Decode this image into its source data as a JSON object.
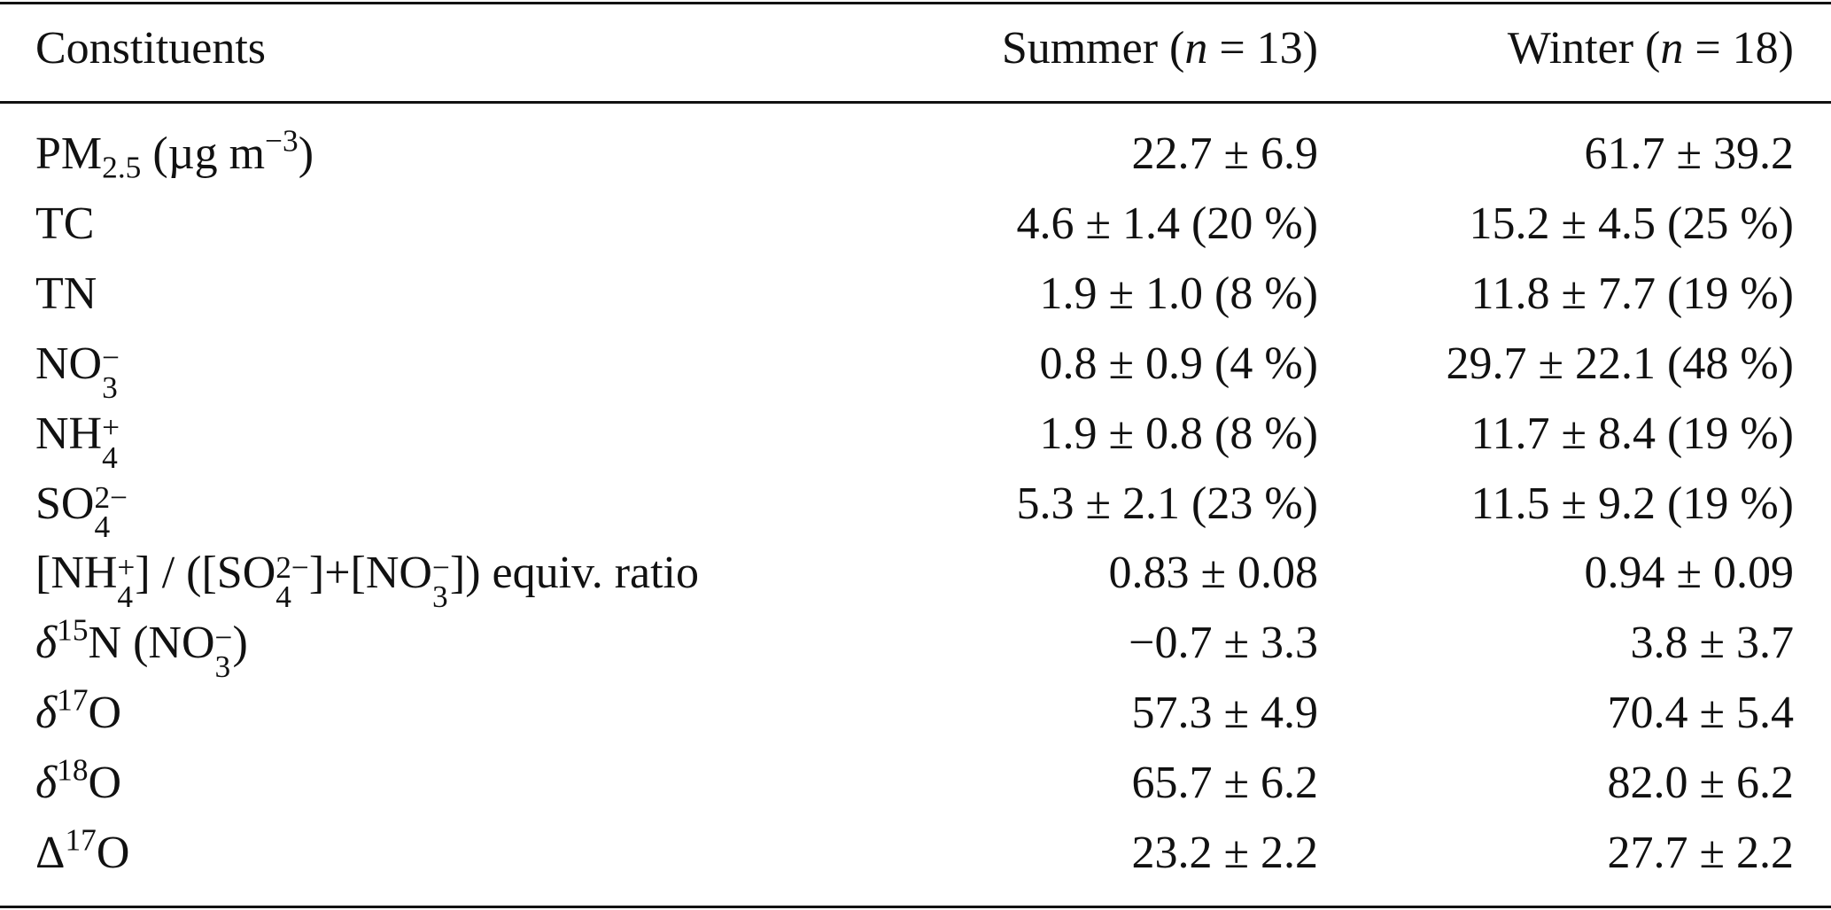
{
  "header": {
    "columns": [
      [
        {
          "text": "Constituents"
        }
      ],
      [
        {
          "text": "Summer ("
        },
        {
          "i": "n"
        },
        {
          "text": " = 13)"
        }
      ],
      [
        {
          "text": "Winter ("
        },
        {
          "i": "n"
        },
        {
          "text": " = 18)"
        }
      ]
    ]
  },
  "rows": [
    {
      "label": [
        {
          "text": "PM"
        },
        {
          "sub": "2.5"
        },
        {
          "text": " (µg m"
        },
        {
          "sup": "−3"
        },
        {
          "text": ")"
        }
      ],
      "summer": "22.7 ± 6.9",
      "winter": "61.7 ± 39.2"
    },
    {
      "label": [
        {
          "text": "TC"
        }
      ],
      "summer": "4.6 ± 1.4 (20 %)",
      "winter": "15.2 ± 4.5 (25 %)"
    },
    {
      "label": [
        {
          "text": "TN"
        }
      ],
      "summer": "1.9 ± 1.0 (8 %)",
      "winter": "11.8 ± 7.7 (19 %)"
    },
    {
      "label": [
        {
          "text": "NO"
        },
        {
          "sup": "−",
          "sub": "3"
        }
      ],
      "summer": "0.8 ± 0.9 (4 %)",
      "winter": "29.7 ± 22.1 (48 %)"
    },
    {
      "label": [
        {
          "text": "NH"
        },
        {
          "sup": "+",
          "sub": "4"
        }
      ],
      "summer": "1.9 ± 0.8 (8 %)",
      "winter": "11.7 ± 8.4 (19 %)"
    },
    {
      "label": [
        {
          "text": "SO"
        },
        {
          "sup": "2−",
          "sub": "4"
        }
      ],
      "summer": "5.3 ± 2.1 (23 %)",
      "winter": "11.5 ± 9.2 (19 %)"
    },
    {
      "label": [
        {
          "text": "[NH"
        },
        {
          "sup": "+",
          "sub": "4"
        },
        {
          "text": "] / ([SO"
        },
        {
          "sup": "2−",
          "sub": "4"
        },
        {
          "text": "]+[NO"
        },
        {
          "sup": "−",
          "sub": "3"
        },
        {
          "text": "]) equiv. ratio"
        }
      ],
      "summer": "0.83 ± 0.08",
      "winter": "0.94 ± 0.09"
    },
    {
      "label": [
        {
          "i": "δ"
        },
        {
          "sup": "15"
        },
        {
          "text": "N (NO"
        },
        {
          "sup": "−",
          "sub": "3"
        },
        {
          "text": ")"
        }
      ],
      "summer": "−0.7 ± 3.3",
      "winter": "3.8 ± 3.7"
    },
    {
      "label": [
        {
          "i": "δ"
        },
        {
          "sup": "17"
        },
        {
          "text": "O"
        }
      ],
      "summer": "57.3 ± 4.9",
      "winter": "70.4 ± 5.4"
    },
    {
      "label": [
        {
          "i": "δ"
        },
        {
          "sup": "18"
        },
        {
          "text": "O"
        }
      ],
      "summer": "65.7 ± 6.2",
      "winter": "82.0 ± 6.2"
    },
    {
      "label": [
        {
          "text": "Δ"
        },
        {
          "sup": "17"
        },
        {
          "text": "O"
        }
      ],
      "summer": "23.2 ± 2.2",
      "winter": "27.7 ± 2.2"
    }
  ]
}
